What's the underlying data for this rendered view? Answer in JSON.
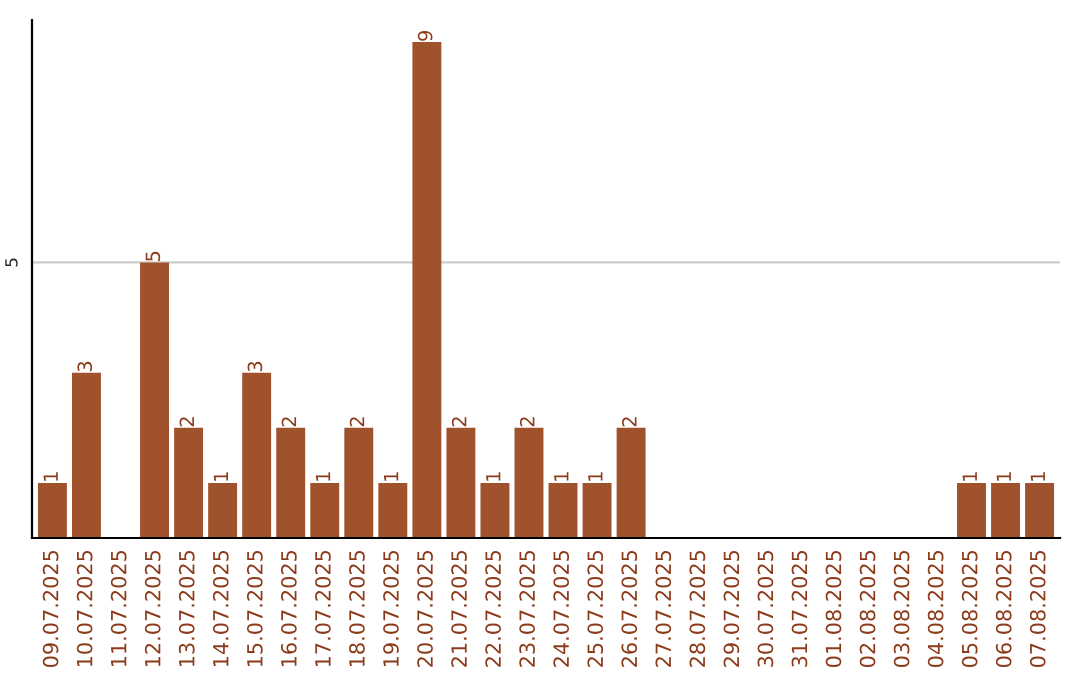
{
  "chart_data": {
    "type": "bar",
    "categories": [
      "09.07.2025",
      "10.07.2025",
      "11.07.2025",
      "12.07.2025",
      "13.07.2025",
      "14.07.2025",
      "15.07.2025",
      "16.07.2025",
      "17.07.2025",
      "18.07.2025",
      "19.07.2025",
      "20.07.2025",
      "21.07.2025",
      "22.07.2025",
      "23.07.2025",
      "24.07.2025",
      "25.07.2025",
      "26.07.2025",
      "27.07.2025",
      "28.07.2025",
      "29.07.2025",
      "30.07.2025",
      "31.07.2025",
      "01.08.2025",
      "02.08.2025",
      "03.08.2025",
      "04.08.2025",
      "05.08.2025",
      "06.08.2025",
      "07.08.2025"
    ],
    "values": [
      1,
      3,
      null,
      5,
      2,
      1,
      3,
      2,
      1,
      2,
      1,
      9,
      2,
      1,
      2,
      1,
      1,
      2,
      null,
      null,
      null,
      null,
      null,
      null,
      null,
      null,
      null,
      1,
      1,
      1
    ],
    "value_labels": [
      "1",
      "3",
      null,
      "5",
      "2",
      "1",
      "3",
      "2",
      "1",
      "2",
      "1",
      "9",
      "2",
      "1",
      "2",
      "1",
      "1",
      "2",
      null,
      null,
      null,
      null,
      null,
      null,
      null,
      null,
      null,
      "1",
      "1",
      "1"
    ],
    "color": "#a0522d",
    "ylim": [
      0,
      9.4
    ],
    "yticks": [
      5
    ],
    "grid": "y"
  }
}
